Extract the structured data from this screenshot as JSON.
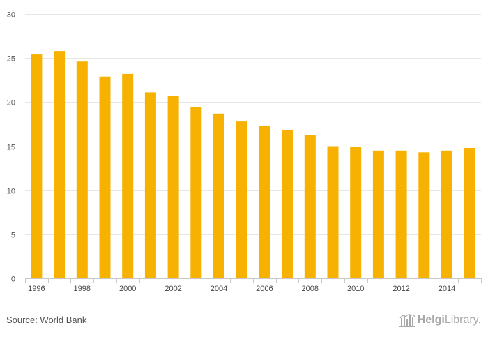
{
  "chart_data": {
    "type": "bar",
    "title": "",
    "xlabel": "",
    "ylabel": "",
    "ylim": [
      0,
      30
    ],
    "yticks": [
      0,
      5,
      10,
      15,
      20,
      25,
      30
    ],
    "grid": true,
    "legend": "none",
    "categories": [
      "1996",
      "1997",
      "1998",
      "1999",
      "2000",
      "2001",
      "2002",
      "2003",
      "2004",
      "2005",
      "2006",
      "2007",
      "2008",
      "2009",
      "2010",
      "2011",
      "2012",
      "2013",
      "2014",
      "2015"
    ],
    "x_tick_labels": [
      "1996",
      "",
      "1998",
      "",
      "2000",
      "",
      "2002",
      "",
      "2004",
      "",
      "2006",
      "",
      "2008",
      "",
      "2010",
      "",
      "2012",
      "",
      "2014",
      ""
    ],
    "series": [
      {
        "values": [
          25.4,
          25.8,
          24.6,
          22.9,
          23.2,
          21.1,
          20.7,
          19.4,
          18.7,
          17.8,
          17.3,
          16.8,
          16.3,
          15.0,
          14.9,
          14.5,
          14.5,
          14.3,
          14.5,
          14.8
        ],
        "color": "#f7b100"
      }
    ]
  },
  "footer": {
    "source": "Source: World Bank",
    "logo_part1": "Helgi",
    "logo_part2": "Library."
  },
  "colors": {
    "bar": "#f7b100",
    "grid": "#e6e6e6",
    "axis": "#c8c8c8",
    "text": "#555555",
    "logo": "#a8a8a8"
  }
}
